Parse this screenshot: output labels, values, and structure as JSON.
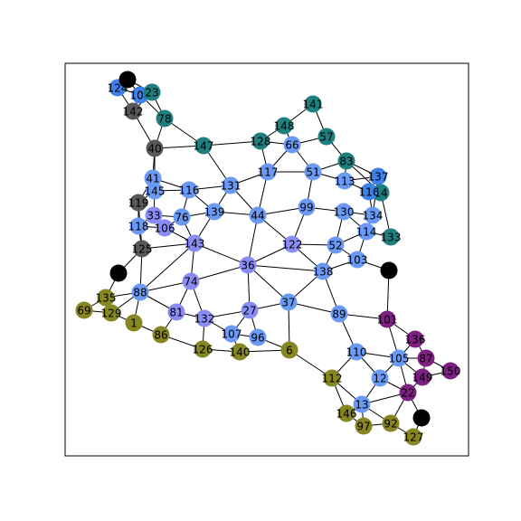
{
  "graph": {
    "colors": {
      "blue": "#3f7fe8",
      "light_blue": "#6a9af5",
      "periwinkle": "#8a8cf5",
      "teal": "#1f7f7f",
      "gray": "#585858",
      "olive": "#868622",
      "purple": "#7d2080",
      "black": "#000000"
    },
    "nodes": [
      {
        "id": "124",
        "color": "blue"
      },
      {
        "id": "104",
        "color": "blue"
      },
      {
        "id": "23",
        "color": "teal"
      },
      {
        "id": "b1",
        "label": "",
        "color": "black"
      },
      {
        "id": "142",
        "color": "gray"
      },
      {
        "id": "78",
        "color": "teal"
      },
      {
        "id": "40",
        "color": "gray"
      },
      {
        "id": "147",
        "color": "teal"
      },
      {
        "id": "141",
        "color": "teal"
      },
      {
        "id": "148",
        "color": "teal"
      },
      {
        "id": "57",
        "color": "teal"
      },
      {
        "id": "128",
        "color": "teal"
      },
      {
        "id": "66",
        "color": "light_blue"
      },
      {
        "id": "83",
        "color": "teal"
      },
      {
        "id": "117",
        "color": "light_blue"
      },
      {
        "id": "51",
        "color": "light_blue"
      },
      {
        "id": "137",
        "color": "blue"
      },
      {
        "id": "113",
        "color": "light_blue"
      },
      {
        "id": "116",
        "color": "light_blue"
      },
      {
        "id": "14",
        "color": "teal"
      },
      {
        "id": "41",
        "color": "light_blue"
      },
      {
        "id": "145",
        "color": "light_blue"
      },
      {
        "id": "131",
        "color": "light_blue"
      },
      {
        "id": "119",
        "color": "gray"
      },
      {
        "id": "139",
        "color": "light_blue"
      },
      {
        "id": "44",
        "color": "light_blue"
      },
      {
        "id": "99",
        "color": "light_blue"
      },
      {
        "id": "130",
        "color": "light_blue"
      },
      {
        "id": "134",
        "color": "light_blue"
      },
      {
        "id": "33",
        "color": "periwinkle"
      },
      {
        "id": "76",
        "color": "light_blue"
      },
      {
        "id": "106",
        "color": "periwinkle"
      },
      {
        "id": "118",
        "color": "light_blue"
      },
      {
        "id": "114",
        "color": "light_blue"
      },
      {
        "id": "133",
        "color": "teal"
      },
      {
        "id": "122",
        "color": "periwinkle"
      },
      {
        "id": "52",
        "color": "light_blue"
      },
      {
        "id": "143",
        "color": "periwinkle"
      },
      {
        "id": "125",
        "color": "gray"
      },
      {
        "id": "103",
        "color": "light_blue"
      },
      {
        "id": "36",
        "color": "periwinkle"
      },
      {
        "id": "138",
        "color": "light_blue"
      },
      {
        "id": "b2",
        "label": "",
        "color": "black"
      },
      {
        "id": "b3",
        "label": "",
        "color": "black"
      },
      {
        "id": "74",
        "color": "periwinkle"
      },
      {
        "id": "135",
        "color": "olive"
      },
      {
        "id": "88",
        "color": "light_blue"
      },
      {
        "id": "37",
        "color": "light_blue"
      },
      {
        "id": "69",
        "color": "olive"
      },
      {
        "id": "129",
        "color": "olive"
      },
      {
        "id": "81",
        "color": "periwinkle"
      },
      {
        "id": "27",
        "color": "periwinkle"
      },
      {
        "id": "132",
        "color": "periwinkle"
      },
      {
        "id": "89",
        "color": "light_blue"
      },
      {
        "id": "101",
        "color": "purple"
      },
      {
        "id": "1",
        "color": "olive"
      },
      {
        "id": "107",
        "color": "light_blue"
      },
      {
        "id": "96",
        "color": "light_blue"
      },
      {
        "id": "86",
        "color": "olive"
      },
      {
        "id": "136",
        "color": "purple"
      },
      {
        "id": "126",
        "color": "olive"
      },
      {
        "id": "140",
        "color": "olive"
      },
      {
        "id": "6",
        "color": "olive"
      },
      {
        "id": "110",
        "color": "light_blue"
      },
      {
        "id": "105",
        "color": "light_blue"
      },
      {
        "id": "87",
        "color": "purple"
      },
      {
        "id": "150",
        "color": "purple"
      },
      {
        "id": "112",
        "color": "olive"
      },
      {
        "id": "12",
        "color": "light_blue"
      },
      {
        "id": "149",
        "color": "purple"
      },
      {
        "id": "22",
        "color": "purple"
      },
      {
        "id": "13",
        "color": "light_blue"
      },
      {
        "id": "b4",
        "label": "",
        "color": "black"
      },
      {
        "id": "146",
        "color": "olive"
      },
      {
        "id": "97",
        "color": "olive"
      },
      {
        "id": "92",
        "color": "olive"
      },
      {
        "id": "127",
        "color": "olive"
      }
    ],
    "edges": [
      [
        "124",
        "104"
      ],
      [
        "124",
        "b1"
      ],
      [
        "124",
        "142"
      ],
      [
        "b1",
        "104"
      ],
      [
        "b1",
        "23"
      ],
      [
        "104",
        "23"
      ],
      [
        "104",
        "142"
      ],
      [
        "104",
        "78"
      ],
      [
        "23",
        "78"
      ],
      [
        "142",
        "23"
      ],
      [
        "78",
        "40"
      ],
      [
        "78",
        "147"
      ],
      [
        "40",
        "147"
      ],
      [
        "40",
        "41"
      ],
      [
        "40",
        "142"
      ],
      [
        "40",
        "145"
      ],
      [
        "147",
        "128"
      ],
      [
        "147",
        "131"
      ],
      [
        "141",
        "148"
      ],
      [
        "141",
        "57"
      ],
      [
        "148",
        "128"
      ],
      [
        "148",
        "66"
      ],
      [
        "57",
        "66"
      ],
      [
        "57",
        "83"
      ],
      [
        "128",
        "66"
      ],
      [
        "128",
        "117"
      ],
      [
        "66",
        "117"
      ],
      [
        "66",
        "51"
      ],
      [
        "83",
        "51"
      ],
      [
        "83",
        "113"
      ],
      [
        "83",
        "137"
      ],
      [
        "83",
        "14"
      ],
      [
        "117",
        "51"
      ],
      [
        "117",
        "131"
      ],
      [
        "117",
        "44"
      ],
      [
        "51",
        "113"
      ],
      [
        "51",
        "99"
      ],
      [
        "113",
        "116r"
      ],
      [
        "113",
        "137"
      ],
      [
        "137",
        "116r"
      ],
      [
        "137",
        "134"
      ],
      [
        "116r",
        "14"
      ],
      [
        "116r",
        "134"
      ],
      [
        "14",
        "133"
      ],
      [
        "41",
        "145"
      ],
      [
        "41",
        "116"
      ],
      [
        "41",
        "119"
      ],
      [
        "145",
        "116"
      ],
      [
        "145",
        "33"
      ],
      [
        "145",
        "119"
      ],
      [
        "116",
        "131"
      ],
      [
        "116",
        "139"
      ],
      [
        "116",
        "76"
      ],
      [
        "131",
        "139"
      ],
      [
        "131",
        "44"
      ],
      [
        "119",
        "118"
      ],
      [
        "119",
        "125"
      ],
      [
        "139",
        "76"
      ],
      [
        "139",
        "44"
      ],
      [
        "139",
        "143"
      ],
      [
        "44",
        "99"
      ],
      [
        "44",
        "122"
      ],
      [
        "44",
        "36"
      ],
      [
        "99",
        "130"
      ],
      [
        "99",
        "122"
      ],
      [
        "130",
        "134"
      ],
      [
        "130",
        "52"
      ],
      [
        "130",
        "114"
      ],
      [
        "134",
        "114"
      ],
      [
        "114",
        "133"
      ],
      [
        "114",
        "52"
      ],
      [
        "114",
        "103"
      ],
      [
        "33",
        "76"
      ],
      [
        "33",
        "106"
      ],
      [
        "33",
        "118"
      ],
      [
        "76",
        "106"
      ],
      [
        "76",
        "143"
      ],
      [
        "106",
        "118"
      ],
      [
        "106",
        "143"
      ],
      [
        "118",
        "125"
      ],
      [
        "125",
        "143"
      ],
      [
        "125",
        "88"
      ],
      [
        "125",
        "b2"
      ],
      [
        "122",
        "52"
      ],
      [
        "122",
        "138"
      ],
      [
        "122",
        "36"
      ],
      [
        "52",
        "103"
      ],
      [
        "52",
        "138"
      ],
      [
        "103",
        "b3"
      ],
      [
        "103",
        "138"
      ],
      [
        "143",
        "36"
      ],
      [
        "143",
        "74"
      ],
      [
        "143",
        "88"
      ],
      [
        "36",
        "74"
      ],
      [
        "36",
        "138"
      ],
      [
        "36",
        "37"
      ],
      [
        "36",
        "27"
      ],
      [
        "138",
        "37"
      ],
      [
        "138",
        "89"
      ],
      [
        "b3",
        "101"
      ],
      [
        "74",
        "81"
      ],
      [
        "74",
        "132"
      ],
      [
        "74",
        "88"
      ],
      [
        "135",
        "88"
      ],
      [
        "135",
        "69"
      ],
      [
        "135",
        "129"
      ],
      [
        "b2",
        "135"
      ],
      [
        "88",
        "129"
      ],
      [
        "88",
        "1"
      ],
      [
        "88",
        "81"
      ],
      [
        "37",
        "27"
      ],
      [
        "37",
        "89"
      ],
      [
        "37",
        "6"
      ],
      [
        "69",
        "129"
      ],
      [
        "129",
        "1"
      ],
      [
        "81",
        "132"
      ],
      [
        "81",
        "86"
      ],
      [
        "27",
        "132"
      ],
      [
        "27",
        "107"
      ],
      [
        "27",
        "96"
      ],
      [
        "132",
        "107"
      ],
      [
        "132",
        "126"
      ],
      [
        "89",
        "101"
      ],
      [
        "89",
        "110"
      ],
      [
        "101",
        "136"
      ],
      [
        "101",
        "105"
      ],
      [
        "1",
        "86"
      ],
      [
        "107",
        "96"
      ],
      [
        "107",
        "140"
      ],
      [
        "96",
        "6"
      ],
      [
        "86",
        "126"
      ],
      [
        "136",
        "87"
      ],
      [
        "136",
        "105"
      ],
      [
        "126",
        "140"
      ],
      [
        "140",
        "6"
      ],
      [
        "6",
        "112"
      ],
      [
        "110",
        "105"
      ],
      [
        "110",
        "112"
      ],
      [
        "110",
        "12"
      ],
      [
        "105",
        "87"
      ],
      [
        "105",
        "12"
      ],
      [
        "105",
        "149"
      ],
      [
        "105",
        "22"
      ],
      [
        "87",
        "150"
      ],
      [
        "87",
        "149"
      ],
      [
        "150",
        "149"
      ],
      [
        "112",
        "13"
      ],
      [
        "112",
        "146"
      ],
      [
        "12",
        "22"
      ],
      [
        "12",
        "13"
      ],
      [
        "149",
        "22"
      ],
      [
        "22",
        "b4"
      ],
      [
        "22",
        "92"
      ],
      [
        "22",
        "13"
      ],
      [
        "13",
        "146"
      ],
      [
        "13",
        "97"
      ],
      [
        "13",
        "92"
      ],
      [
        "b4",
        "127"
      ],
      [
        "146",
        "97"
      ],
      [
        "97",
        "92"
      ],
      [
        "92",
        "127"
      ]
    ]
  }
}
